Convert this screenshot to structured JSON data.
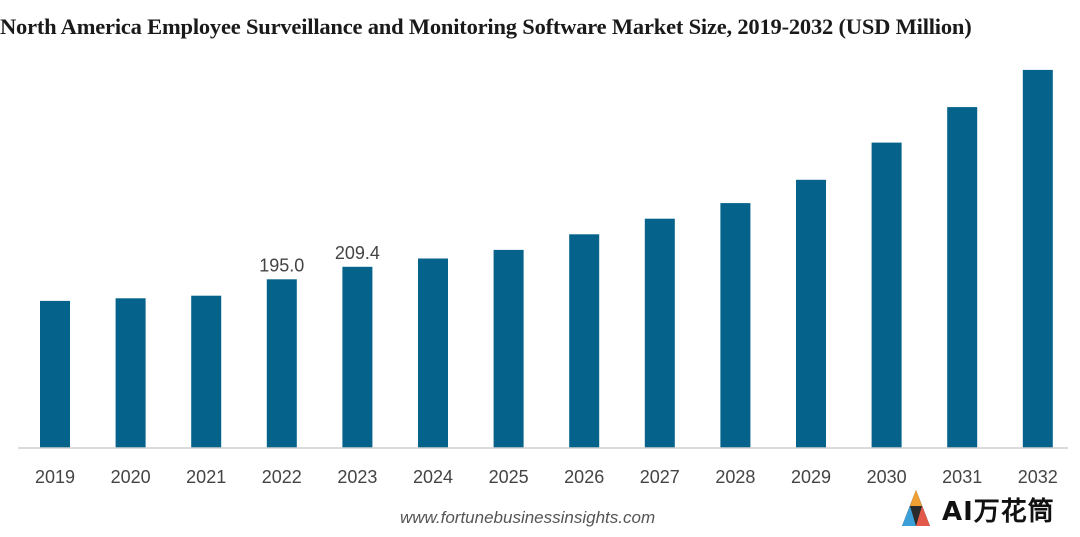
{
  "page": {
    "source": "www.fortunebusinessinsights.com",
    "watermark_text": "AI万花筒"
  },
  "chart_data": {
    "type": "bar",
    "title": "North America Employee Surveillance and Monitoring Software Market Size, 2019-2032 (USD Million)",
    "xlabel": "",
    "ylabel": "",
    "categories": [
      "2019",
      "2020",
      "2021",
      "2022",
      "2023",
      "2024",
      "2025",
      "2026",
      "2027",
      "2028",
      "2029",
      "2030",
      "2031",
      "2032"
    ],
    "values": [
      170,
      173,
      176,
      195.0,
      209.4,
      219,
      229,
      247,
      265,
      283,
      310,
      353,
      394,
      437
    ],
    "data_labels": [
      "",
      "",
      "",
      "195.0",
      "209.4",
      "",
      "",
      "",
      "",
      "",
      "",
      "",
      "",
      ""
    ],
    "ylim": [
      0,
      460
    ],
    "grid": false,
    "legend": "none",
    "bar_color": "#05628A"
  }
}
